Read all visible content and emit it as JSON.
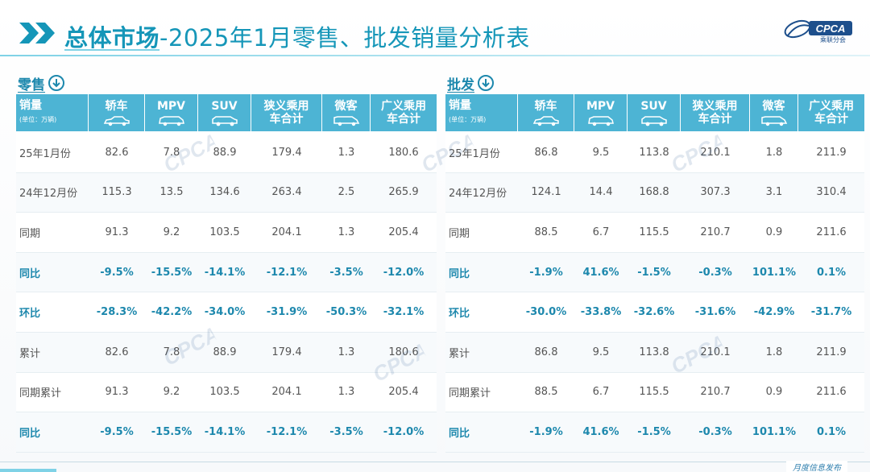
{
  "header": {
    "title_strong": "总体市场",
    "title_rest": "-2025年1月零售、批发销量分析表",
    "logo_text": "CPCA",
    "logo_sub": "乘联分会"
  },
  "retail": {
    "label": "零售",
    "header": {
      "first": "销量",
      "unit": "(单位：万辆)",
      "cols": [
        "轿车",
        "MPV",
        "SUV",
        "狭义乘用车合计",
        "微客",
        "广义乘用车合计"
      ]
    },
    "rows": [
      {
        "label": "25年1月份",
        "values": [
          "82.6",
          "7.8",
          "88.9",
          "179.4",
          "1.3",
          "180.6"
        ]
      },
      {
        "label": "24年12月份",
        "values": [
          "115.3",
          "13.5",
          "134.6",
          "263.4",
          "2.5",
          "265.9"
        ]
      },
      {
        "label": "同期",
        "values": [
          "91.3",
          "9.2",
          "103.5",
          "204.1",
          "1.3",
          "205.4"
        ]
      },
      {
        "label": "同比",
        "values": [
          "-9.5%",
          "-15.5%",
          "-14.1%",
          "-12.1%",
          "-3.5%",
          "-12.0%"
        ]
      },
      {
        "label": "环比",
        "values": [
          "-28.3%",
          "-42.2%",
          "-34.0%",
          "-31.9%",
          "-50.3%",
          "-32.1%"
        ]
      },
      {
        "label": "累计",
        "values": [
          "82.6",
          "7.8",
          "88.9",
          "179.4",
          "1.3",
          "180.6"
        ]
      },
      {
        "label": "同期累计",
        "values": [
          "91.3",
          "9.2",
          "103.5",
          "204.1",
          "1.3",
          "205.4"
        ]
      },
      {
        "label": "同比",
        "values": [
          "-9.5%",
          "-15.5%",
          "-14.1%",
          "-12.1%",
          "-3.5%",
          "-12.0%"
        ]
      }
    ]
  },
  "wholesale": {
    "label": "批发",
    "header": {
      "first": "销量",
      "unit": "(单位：万辆)",
      "cols": [
        "轿车",
        "MPV",
        "SUV",
        "狭义乘用车合计",
        "微客",
        "广义乘用车合计"
      ]
    },
    "rows": [
      {
        "label": "25年1月份",
        "values": [
          "86.8",
          "9.5",
          "113.8",
          "210.1",
          "1.8",
          "211.9"
        ]
      },
      {
        "label": "24年12月份",
        "values": [
          "124.1",
          "14.4",
          "168.8",
          "307.3",
          "3.1",
          "310.4"
        ]
      },
      {
        "label": "同期",
        "values": [
          "88.5",
          "6.7",
          "115.5",
          "210.7",
          "0.9",
          "211.6"
        ]
      },
      {
        "label": "同比",
        "values": [
          "-1.9%",
          "41.6%",
          "-1.5%",
          "-0.3%",
          "101.1%",
          "0.1%"
        ]
      },
      {
        "label": "环比",
        "values": [
          "-30.0%",
          "-33.8%",
          "-32.6%",
          "-31.6%",
          "-42.9%",
          "-31.7%"
        ]
      },
      {
        "label": "累计",
        "values": [
          "86.8",
          "9.5",
          "113.8",
          "210.1",
          "1.8",
          "211.9"
        ]
      },
      {
        "label": "同期累计",
        "values": [
          "88.5",
          "6.7",
          "115.5",
          "210.7",
          "0.9",
          "211.6"
        ]
      },
      {
        "label": "同比",
        "values": [
          "-1.9%",
          "41.6%",
          "-1.5%",
          "-0.3%",
          "101.1%",
          "0.1%"
        ]
      }
    ]
  },
  "footer": {
    "text": "月度信息发布"
  },
  "colors": {
    "accent": "#1596b8",
    "header_bg": "#4db4d4",
    "pct_text": "#1d88ad"
  }
}
